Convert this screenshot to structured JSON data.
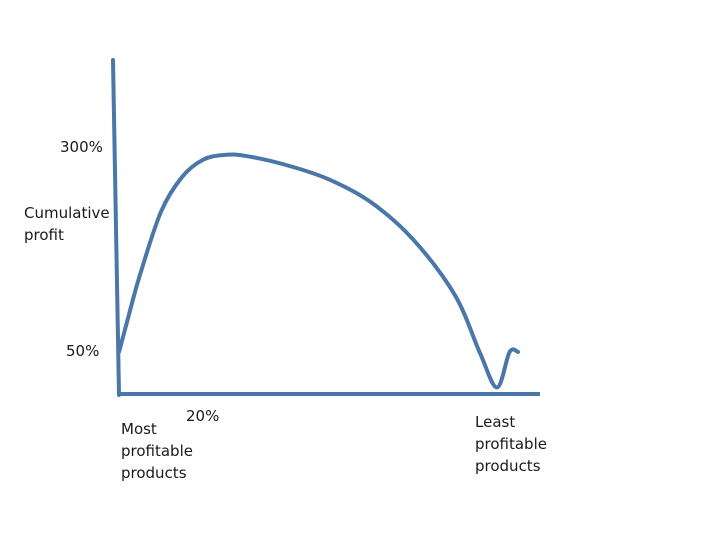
{
  "chart_data": {
    "type": "line",
    "title": "",
    "xlabel": "",
    "ylabel": "Cumulative\nprofit",
    "y_ticks": [
      "300%",
      "50%"
    ],
    "x_tick": "20%",
    "x_start_label": "Most\nprofitable\nproducts",
    "x_end_label": "Least\nprofitable\nproducts",
    "color": "#4a76a8",
    "series": [
      {
        "x": [
          0,
          2,
          5,
          10,
          15,
          20,
          25,
          30,
          40,
          50,
          60,
          70,
          80,
          86,
          90,
          93,
          95
        ],
        "y": [
          50,
          90,
          148,
          228,
          272,
          294,
          300,
          299,
          287,
          269,
          240,
          193,
          122,
          48,
          5,
          0,
          0
        ]
      }
    ]
  }
}
